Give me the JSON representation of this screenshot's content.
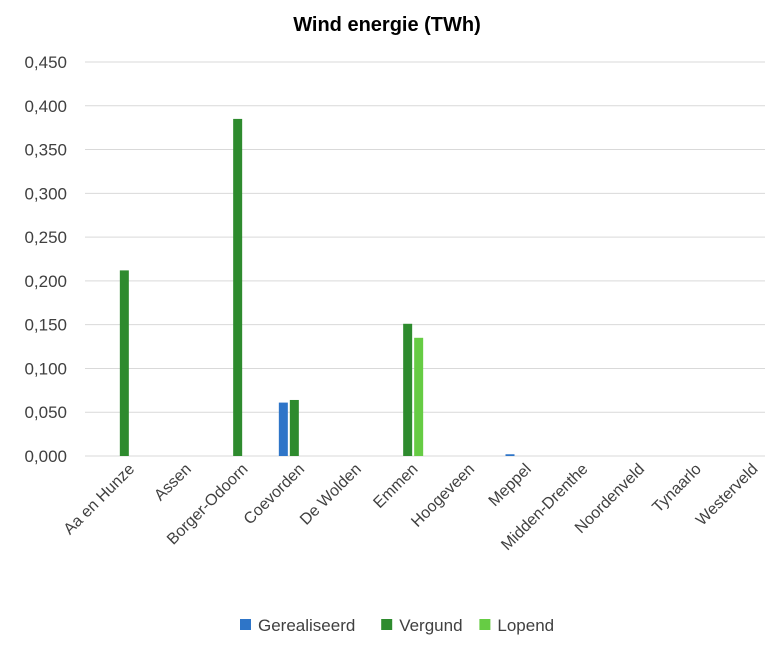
{
  "chart_data": {
    "type": "bar",
    "title": "Wind energie (TWh)",
    "xlabel": "",
    "ylabel": "",
    "ylim": [
      0,
      0.45
    ],
    "yticks": [
      "0,000",
      "0,050",
      "0,100",
      "0,150",
      "0,200",
      "0,250",
      "0,300",
      "0,350",
      "0,400",
      "0,450"
    ],
    "grid": true,
    "legend": "bottom",
    "categories": [
      "Aa en Hunze",
      "Assen",
      "Borger-Odoorn",
      "Coevorden",
      "De Wolden",
      "Emmen",
      "Hoogeveen",
      "Meppel",
      "Midden-Drenthe",
      "Noordenveld",
      "Tynaarlo",
      "Westerveld"
    ],
    "series": [
      {
        "name": "Gerealiseerd",
        "color": "#2e75c8",
        "values": [
          0,
          0,
          0,
          0.061,
          0,
          0,
          0,
          0.002,
          0,
          0,
          0,
          0
        ]
      },
      {
        "name": "Vergund",
        "color": "#2e8b2e",
        "values": [
          0.212,
          0,
          0.385,
          0.064,
          0,
          0.151,
          0,
          0,
          0,
          0,
          0,
          0
        ]
      },
      {
        "name": "Lopend",
        "color": "#66cc44",
        "values": [
          0,
          0,
          0,
          0,
          0,
          0.135,
          0,
          0,
          0,
          0,
          0,
          0
        ]
      }
    ]
  }
}
